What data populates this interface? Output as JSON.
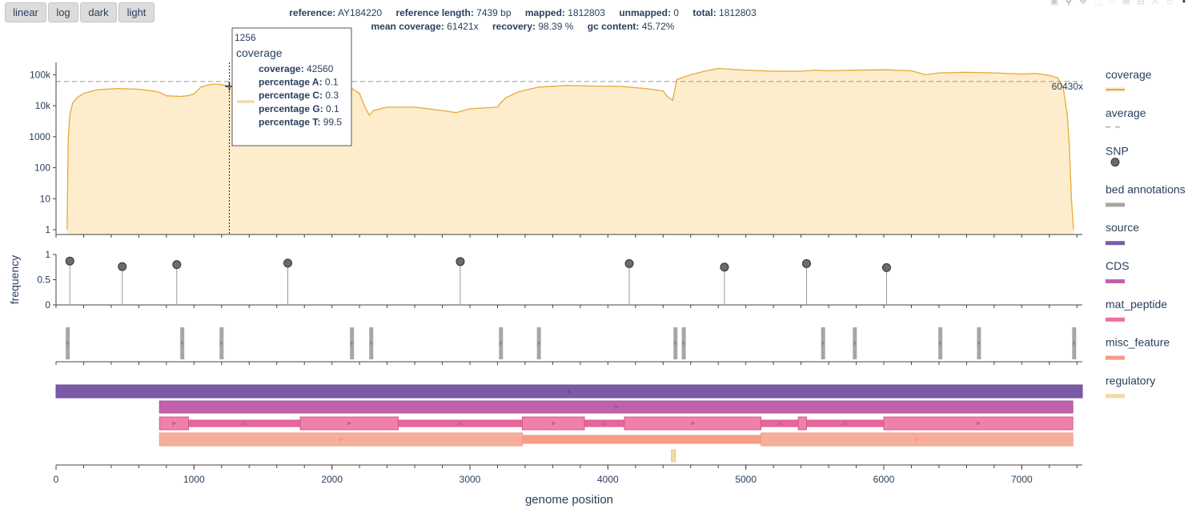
{
  "buttons": [
    {
      "label": "linear"
    },
    {
      "label": "log"
    },
    {
      "label": "dark"
    },
    {
      "label": "light"
    }
  ],
  "stats": {
    "reference_label": "reference:",
    "reference": "AY184220",
    "ref_length_label": "reference length:",
    "ref_length": "7439 bp",
    "mapped_label": "mapped:",
    "mapped": "1812803",
    "unmapped_label": "unmapped:",
    "unmapped": "0",
    "total_label": "total:",
    "total": "1812803",
    "mean_cov_label": "mean coverage:",
    "mean_cov": "61421x",
    "recovery_label": "recovery:",
    "recovery": "98.39 %",
    "gc_label": "gc content:",
    "gc": "45.72%"
  },
  "tooltip": {
    "x": "1256",
    "name": "coverage",
    "rows": [
      {
        "label": "coverage:",
        "value": "42560"
      },
      {
        "label": "percentage A:",
        "value": "0.1"
      },
      {
        "label": "percentage C:",
        "value": "0.3"
      },
      {
        "label": "percentage G:",
        "value": "0.1"
      },
      {
        "label": "percentage T:",
        "value": "99.5"
      }
    ]
  },
  "average_label": "60430x",
  "legend": [
    {
      "name": "coverage",
      "color": "#e8a838",
      "kind": "line"
    },
    {
      "name": "average",
      "color": "#888888",
      "kind": "dash"
    },
    {
      "name": "SNP",
      "color": "#555555",
      "kind": "dot"
    },
    {
      "name": "bed annotations",
      "color": "#a6a6a6",
      "kind": "bar"
    },
    {
      "name": "source",
      "color": "#7a5ba8",
      "kind": "bar"
    },
    {
      "name": "CDS",
      "color": "#bf61ad",
      "kind": "bar"
    },
    {
      "name": "mat_peptide",
      "color": "#ef6f9f",
      "kind": "bar"
    },
    {
      "name": "misc_feature",
      "color": "#f69b87",
      "kind": "bar"
    },
    {
      "name": "regulatory",
      "color": "#f4d9a6",
      "kind": "bar"
    }
  ],
  "chart_data": [
    {
      "type": "area",
      "name": "coverage",
      "yscale": "log",
      "ylim": [
        0.7,
        250000
      ],
      "xlim": [
        0,
        7439
      ],
      "ytick_labels": [
        "1",
        "10",
        "100",
        "1000",
        "10k",
        "100k"
      ],
      "ytick_values": [
        1,
        10,
        100,
        1000,
        10000,
        100000
      ],
      "average": 60430,
      "x": [
        80,
        88,
        100,
        120,
        150,
        200,
        300,
        450,
        600,
        700,
        750,
        800,
        900,
        950,
        1000,
        1050,
        1100,
        1150,
        1200,
        1256,
        1300,
        1400,
        1500,
        1600,
        1700,
        1800,
        1900,
        2000,
        2100,
        2200,
        2240,
        2270,
        2300,
        2400,
        2600,
        2800,
        2900,
        3000,
        3200,
        3220,
        3260,
        3350,
        3500,
        3700,
        3900,
        4100,
        4300,
        4400,
        4430,
        4470,
        4500,
        4600,
        4700,
        4800,
        4900,
        5000,
        5200,
        5400,
        5500,
        5600,
        5800,
        6000,
        6200,
        6300,
        6400,
        6600,
        6800,
        7000,
        7100,
        7200,
        7260,
        7300,
        7330,
        7345,
        7360,
        7375
      ],
      "y": [
        1,
        800,
        5000,
        12000,
        18000,
        25000,
        33000,
        36000,
        34000,
        30000,
        27000,
        21000,
        20000,
        21000,
        24000,
        40000,
        47000,
        50000,
        48000,
        42560,
        44000,
        40000,
        45000,
        50000,
        55000,
        60000,
        55000,
        50000,
        48000,
        25000,
        9000,
        5000,
        7000,
        9000,
        9000,
        7000,
        6000,
        8000,
        9000,
        12000,
        18000,
        28000,
        40000,
        45000,
        43000,
        42000,
        35000,
        30000,
        20000,
        15000,
        70000,
        100000,
        130000,
        160000,
        150000,
        140000,
        130000,
        130000,
        140000,
        135000,
        140000,
        145000,
        135000,
        100000,
        115000,
        120000,
        115000,
        105000,
        110000,
        95000,
        80000,
        40000,
        5000,
        500,
        10,
        1
      ]
    },
    {
      "type": "scatter",
      "name": "SNP",
      "ylabel": "frequency",
      "ylim": [
        0,
        1
      ],
      "ytick_labels": [
        "0",
        "0.5",
        "1"
      ],
      "x": [
        100,
        480,
        875,
        1680,
        2930,
        4155,
        4845,
        5440,
        6020
      ],
      "y": [
        0.87,
        0.76,
        0.8,
        0.83,
        0.86,
        0.82,
        0.75,
        0.82,
        0.74
      ]
    },
    {
      "type": "bar",
      "name": "bed annotations",
      "positions": [
        85,
        915,
        1200,
        2145,
        2285,
        3225,
        3500,
        4490,
        4550,
        5560,
        5790,
        6410,
        6690,
        7380
      ]
    },
    {
      "type": "bar",
      "name": "features",
      "xlabel": "genome position",
      "xtick_labels": [
        "0",
        "1000",
        "2000",
        "3000",
        "4000",
        "5000",
        "6000",
        "7000"
      ],
      "xtick_values": [
        0,
        1000,
        2000,
        3000,
        4000,
        5000,
        6000,
        7000
      ],
      "tracks": [
        {
          "name": "source",
          "row": 0,
          "segments": [
            [
              0,
              7439
            ]
          ]
        },
        {
          "name": "CDS",
          "row": 1,
          "segments": [
            [
              750,
              7370
            ]
          ]
        },
        {
          "name": "mat_peptide",
          "row": 2,
          "segments": [
            [
              750,
              960
            ],
            [
              1770,
              2480
            ],
            [
              3380,
              3830
            ],
            [
              4120,
              5110
            ],
            [
              5380,
              5440
            ],
            [
              6000,
              7370
            ]
          ]
        },
        {
          "name": "mat_peptide_thin",
          "row": 2,
          "segments": [
            [
              960,
              1770
            ],
            [
              2480,
              3380
            ],
            [
              3830,
              4120
            ],
            [
              5110,
              5380
            ],
            [
              5440,
              6000
            ]
          ]
        },
        {
          "name": "misc_feature",
          "row": 3,
          "segments": [
            [
              750,
              3380
            ],
            [
              5110,
              7370
            ]
          ]
        },
        {
          "name": "misc_feature_dark",
          "row": 3,
          "segments": [
            [
              3380,
              5110
            ]
          ]
        },
        {
          "name": "regulatory",
          "row": 4,
          "segments": [
            [
              4460,
              4490
            ]
          ]
        }
      ]
    }
  ]
}
